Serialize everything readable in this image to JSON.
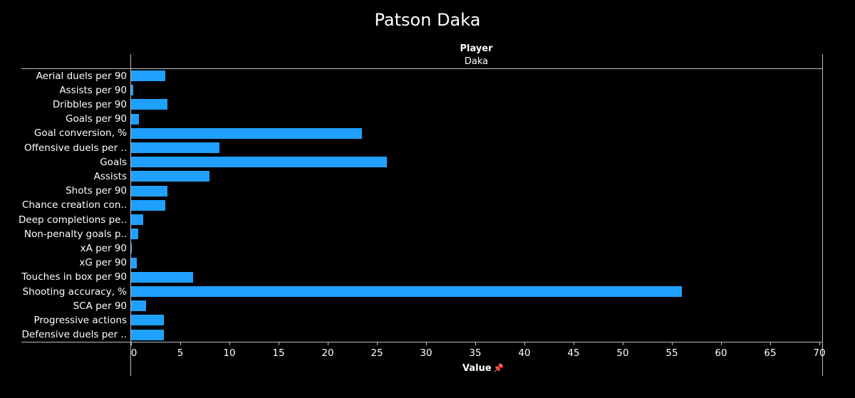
{
  "title": "Patson Daka",
  "header": {
    "field": "Player",
    "value": "Daka"
  },
  "axis": {
    "title": "Value",
    "pin_icon": "pin-icon",
    "ticks": [
      0,
      5,
      10,
      15,
      20,
      25,
      30,
      35,
      40,
      45,
      50,
      55,
      60,
      65,
      70
    ]
  },
  "colors": {
    "bar": "#1fa0ff",
    "background": "#000000",
    "text": "#ffffff",
    "grid": "#bdbdbd"
  },
  "chart_data": {
    "type": "bar",
    "orientation": "horizontal",
    "title": "Patson Daka",
    "column_header": "Player",
    "series": [
      {
        "name": "Daka",
        "values": [
          3.5,
          0.2,
          3.7,
          0.8,
          23.5,
          9.0,
          26,
          8,
          3.7,
          3.5,
          1.2,
          0.7,
          0.1,
          0.6,
          6.3,
          56,
          1.5,
          3.3,
          3.3
        ]
      }
    ],
    "categories": [
      "Aerial duels per 90",
      "Assists per 90",
      "Dribbles per 90",
      "Goals per 90",
      "Goal conversion, %",
      "Offensive duels per ..",
      "Goals",
      "Assists",
      "Shots per 90",
      "Chance creation con..",
      "Deep completions pe..",
      "Non-penalty goals p..",
      "xA per 90",
      "xG per 90",
      "Touches in box per 90",
      "Shooting accuracy, %",
      "SCA per 90",
      "Progressive actions",
      "Defensive duels per .."
    ],
    "values": [
      3.5,
      0.2,
      3.7,
      0.8,
      23.5,
      9.0,
      26,
      8,
      3.7,
      3.5,
      1.2,
      0.7,
      0.1,
      0.6,
      6.3,
      56,
      1.5,
      3.3,
      3.3
    ],
    "xlabel": "Value",
    "ylabel": "",
    "xlim": [
      0,
      70
    ],
    "grid": false,
    "legend": null
  }
}
